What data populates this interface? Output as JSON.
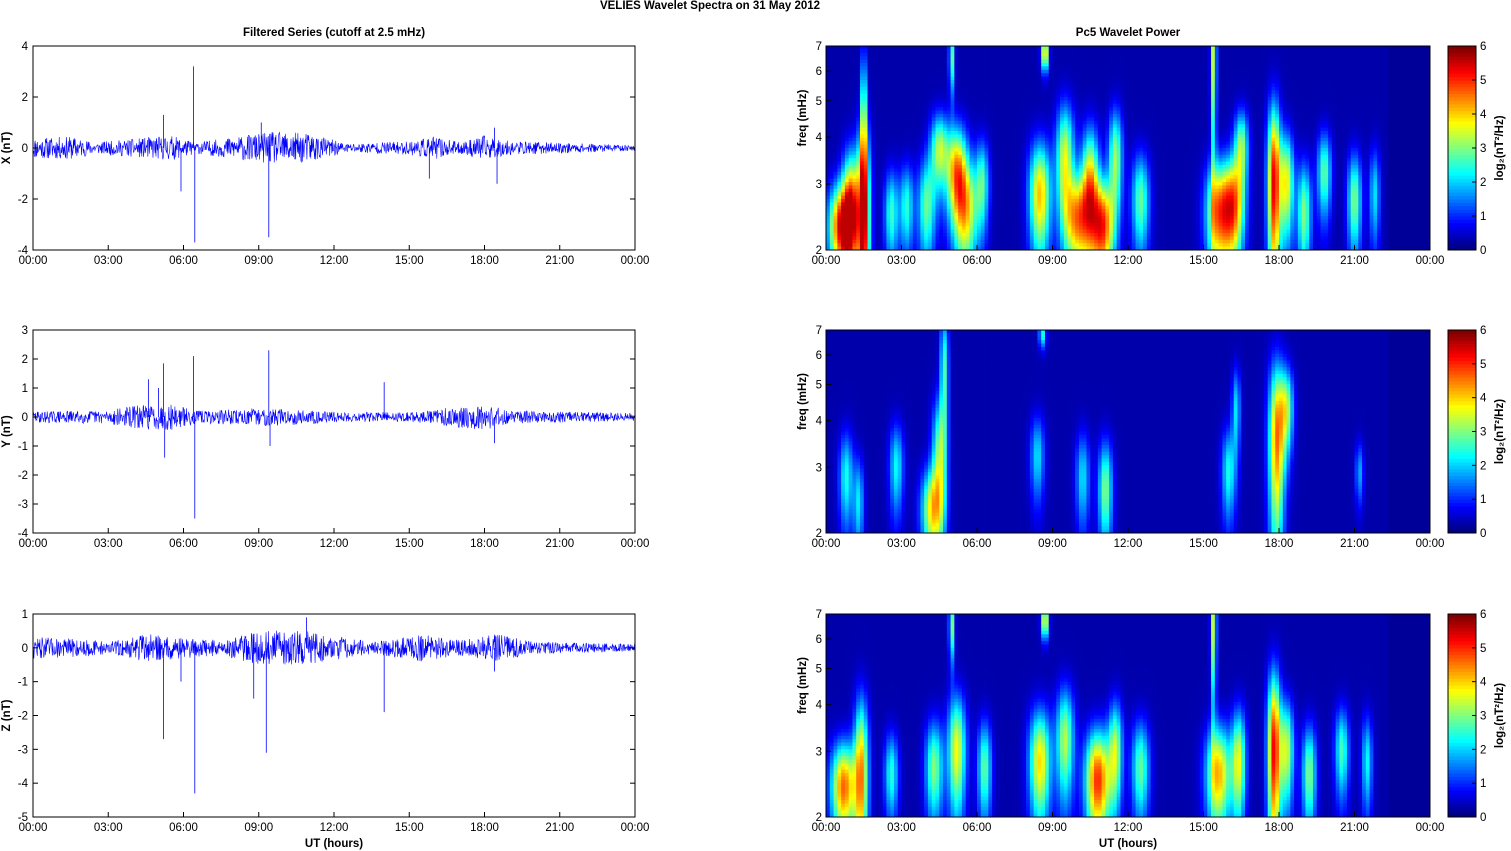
{
  "figure": {
    "title": "VELIES Wavelet Spectra on 31 May      2012"
  },
  "x_ticks": [
    "00:00",
    "03:00",
    "06:00",
    "09:00",
    "12:00",
    "15:00",
    "18:00",
    "21:00",
    "00:00"
  ],
  "chart_data": [
    {
      "type": "line",
      "title": "Filtered Series (cutoff at 2.5 mHz)",
      "ylabel": "X (nT)",
      "xlabel": "",
      "xlim": [
        0,
        24
      ],
      "ylim": [
        -4,
        4
      ],
      "yticks": [
        -4,
        -2,
        0,
        2,
        4
      ],
      "series_color": "#0000ff",
      "noise_profile": [
        [
          0,
          0.45
        ],
        [
          1.5,
          0.5
        ],
        [
          2.5,
          0.25
        ],
        [
          4.5,
          0.45
        ],
        [
          5.5,
          0.55
        ],
        [
          6.5,
          0.25
        ],
        [
          8.5,
          0.55
        ],
        [
          9.5,
          0.7
        ],
        [
          11,
          0.65
        ],
        [
          12.5,
          0.2
        ],
        [
          15,
          0.3
        ],
        [
          16,
          0.5
        ],
        [
          17,
          0.25
        ],
        [
          18,
          0.55
        ],
        [
          19,
          0.3
        ],
        [
          24,
          0.12
        ]
      ],
      "spikes": [
        [
          5.2,
          1.3
        ],
        [
          5.9,
          -1.7
        ],
        [
          6.4,
          3.2
        ],
        [
          6.45,
          -3.7
        ],
        [
          9.4,
          -3.5
        ],
        [
          9.1,
          1.0
        ],
        [
          15.8,
          -1.2
        ],
        [
          18.5,
          -1.4
        ],
        [
          18.4,
          0.8
        ]
      ],
      "seed": 11
    },
    {
      "type": "line",
      "title": "",
      "ylabel": "Y (nT)",
      "xlabel": "",
      "xlim": [
        0,
        24
      ],
      "ylim": [
        -4,
        3
      ],
      "yticks": [
        -4,
        -3,
        -2,
        -1,
        0,
        1,
        2,
        3
      ],
      "series_color": "#0000ff",
      "noise_profile": [
        [
          0,
          0.22
        ],
        [
          3,
          0.25
        ],
        [
          4,
          0.45
        ],
        [
          5.5,
          0.5
        ],
        [
          6.5,
          0.25
        ],
        [
          8,
          0.3
        ],
        [
          9.5,
          0.35
        ],
        [
          12,
          0.2
        ],
        [
          15,
          0.18
        ],
        [
          16,
          0.3
        ],
        [
          18,
          0.5
        ],
        [
          19,
          0.25
        ],
        [
          24,
          0.15
        ]
      ],
      "spikes": [
        [
          4.6,
          1.3
        ],
        [
          5.0,
          1.0
        ],
        [
          5.2,
          1.85
        ],
        [
          5.25,
          -1.4
        ],
        [
          6.4,
          2.1
        ],
        [
          6.45,
          -3.5
        ],
        [
          9.4,
          2.3
        ],
        [
          9.45,
          -1.0
        ],
        [
          14.0,
          1.2
        ],
        [
          18.4,
          -0.9
        ]
      ],
      "seed": 29
    },
    {
      "type": "line",
      "title": "",
      "ylabel": "Z (nT)",
      "xlabel": "UT (hours)",
      "xlim": [
        0,
        24
      ],
      "ylim": [
        -5,
        1
      ],
      "yticks": [
        -5,
        -4,
        -3,
        -2,
        -1,
        0,
        1
      ],
      "series_color": "#0000ff",
      "noise_profile": [
        [
          0,
          0.35
        ],
        [
          2,
          0.3
        ],
        [
          3,
          0.2
        ],
        [
          4.5,
          0.45
        ],
        [
          6,
          0.35
        ],
        [
          7.5,
          0.25
        ],
        [
          9,
          0.55
        ],
        [
          10.5,
          0.6
        ],
        [
          12,
          0.4
        ],
        [
          13.5,
          0.2
        ],
        [
          15.5,
          0.45
        ],
        [
          17,
          0.25
        ],
        [
          18.5,
          0.45
        ],
        [
          20,
          0.2
        ],
        [
          24,
          0.12
        ]
      ],
      "spikes": [
        [
          5.2,
          -2.7
        ],
        [
          5.9,
          -1.0
        ],
        [
          6.45,
          -4.3
        ],
        [
          8.8,
          -1.5
        ],
        [
          9.3,
          -3.1
        ],
        [
          10.9,
          0.9
        ],
        [
          14.0,
          -1.9
        ],
        [
          18.4,
          -0.7
        ]
      ],
      "seed": 47
    },
    {
      "type": "heatmap",
      "title": "Pc5 Wavelet Power",
      "ylabel": "freq (mHz)",
      "xlabel": "",
      "xlim": [
        0,
        24
      ],
      "ylim": [
        2,
        7
      ],
      "y_scale": "log",
      "yticks": [
        2,
        3,
        4,
        5,
        6,
        7
      ],
      "colorbar": {
        "label": "log₂(nT²/Hz)",
        "range": [
          0,
          6
        ],
        "ticks": [
          0,
          1,
          2,
          3,
          4,
          5,
          6
        ],
        "colormap": "jet"
      },
      "blobs": [
        {
          "t": 0.6,
          "f": 2.3,
          "w": 0.35,
          "h": 0.45,
          "v": 5.2
        },
        {
          "t": 1.0,
          "f": 2.6,
          "w": 0.25,
          "h": 0.7,
          "v": 4.5
        },
        {
          "t": 1.5,
          "f": 2.4,
          "w": 0.18,
          "h": 1.2,
          "v": 5.0
        },
        {
          "t": 1.5,
          "f": 4.5,
          "w": 0.08,
          "h": 1.5,
          "v": 3.2
        },
        {
          "t": 2.6,
          "f": 2.5,
          "w": 0.2,
          "h": 0.5,
          "v": 2.5
        },
        {
          "t": 3.2,
          "f": 2.6,
          "w": 0.2,
          "h": 0.5,
          "v": 2.4
        },
        {
          "t": 4.0,
          "f": 2.6,
          "w": 0.25,
          "h": 0.6,
          "v": 2.8
        },
        {
          "t": 4.5,
          "f": 3.7,
          "w": 0.25,
          "h": 0.6,
          "v": 3.2
        },
        {
          "t": 5.2,
          "f": 3.2,
          "w": 0.3,
          "h": 0.7,
          "v": 4.5
        },
        {
          "t": 5.6,
          "f": 2.5,
          "w": 0.3,
          "h": 0.6,
          "v": 3.3
        },
        {
          "t": 5.0,
          "f": 6.5,
          "w": 0.08,
          "h": 1.0,
          "v": 2.8
        },
        {
          "t": 6.2,
          "f": 3.0,
          "w": 0.2,
          "h": 0.6,
          "v": 2.6
        },
        {
          "t": 8.5,
          "f": 2.8,
          "w": 0.3,
          "h": 0.7,
          "v": 4.2
        },
        {
          "t": 8.7,
          "f": 6.7,
          "w": 0.1,
          "h": 0.5,
          "v": 4.5
        },
        {
          "t": 9.5,
          "f": 3.5,
          "w": 0.25,
          "h": 0.9,
          "v": 3.6
        },
        {
          "t": 10.0,
          "f": 2.4,
          "w": 0.35,
          "h": 0.5,
          "v": 4.3
        },
        {
          "t": 10.5,
          "f": 3.0,
          "w": 0.25,
          "h": 0.8,
          "v": 4.0
        },
        {
          "t": 11.0,
          "f": 2.3,
          "w": 0.3,
          "h": 0.5,
          "v": 5.0
        },
        {
          "t": 11.5,
          "f": 3.5,
          "w": 0.2,
          "h": 0.8,
          "v": 3.2
        },
        {
          "t": 12.5,
          "f": 2.7,
          "w": 0.25,
          "h": 0.6,
          "v": 2.8
        },
        {
          "t": 15.4,
          "f": 6.5,
          "w": 0.08,
          "h": 2.5,
          "v": 3.5
        },
        {
          "t": 15.6,
          "f": 2.5,
          "w": 0.35,
          "h": 0.6,
          "v": 4.5
        },
        {
          "t": 16.2,
          "f": 2.6,
          "w": 0.3,
          "h": 0.6,
          "v": 4.3
        },
        {
          "t": 16.5,
          "f": 3.8,
          "w": 0.2,
          "h": 0.6,
          "v": 3.0
        },
        {
          "t": 17.8,
          "f": 3.0,
          "w": 0.18,
          "h": 1.2,
          "v": 5.5
        },
        {
          "t": 18.3,
          "f": 3.0,
          "w": 0.2,
          "h": 0.7,
          "v": 3.8
        },
        {
          "t": 19.0,
          "f": 2.5,
          "w": 0.2,
          "h": 0.6,
          "v": 3.0
        },
        {
          "t": 19.8,
          "f": 3.2,
          "w": 0.2,
          "h": 0.6,
          "v": 2.8
        },
        {
          "t": 21.0,
          "f": 2.7,
          "w": 0.2,
          "h": 0.6,
          "v": 3.0
        },
        {
          "t": 21.8,
          "f": 2.8,
          "w": 0.15,
          "h": 0.6,
          "v": 2.0
        }
      ]
    },
    {
      "type": "heatmap",
      "title": "",
      "ylabel": "freq (mHz)",
      "xlabel": "",
      "xlim": [
        0,
        24
      ],
      "ylim": [
        2,
        7
      ],
      "y_scale": "log",
      "yticks": [
        2,
        3,
        4,
        5,
        6,
        7
      ],
      "colorbar": {
        "label": "log₂(nT²/Hz)",
        "range": [
          0,
          6
        ],
        "ticks": [
          0,
          1,
          2,
          3,
          4,
          5,
          6
        ],
        "colormap": "jet"
      },
      "blobs": [
        {
          "t": 0.8,
          "f": 2.8,
          "w": 0.2,
          "h": 0.6,
          "v": 2.3
        },
        {
          "t": 1.3,
          "f": 2.4,
          "w": 0.15,
          "h": 0.5,
          "v": 2.0
        },
        {
          "t": 2.8,
          "f": 3.0,
          "w": 0.2,
          "h": 0.6,
          "v": 2.2
        },
        {
          "t": 4.2,
          "f": 2.3,
          "w": 0.3,
          "h": 0.45,
          "v": 3.6
        },
        {
          "t": 4.5,
          "f": 3.2,
          "w": 0.2,
          "h": 0.9,
          "v": 3.0
        },
        {
          "t": 4.7,
          "f": 5.5,
          "w": 0.12,
          "h": 1.5,
          "v": 2.6
        },
        {
          "t": 8.4,
          "f": 3.2,
          "w": 0.2,
          "h": 0.6,
          "v": 2.0
        },
        {
          "t": 8.6,
          "f": 6.8,
          "w": 0.1,
          "h": 0.4,
          "v": 2.4
        },
        {
          "t": 10.2,
          "f": 2.8,
          "w": 0.2,
          "h": 0.6,
          "v": 2.0
        },
        {
          "t": 11.1,
          "f": 2.6,
          "w": 0.2,
          "h": 0.6,
          "v": 3.0
        },
        {
          "t": 16.0,
          "f": 2.9,
          "w": 0.2,
          "h": 0.6,
          "v": 2.3
        },
        {
          "t": 16.3,
          "f": 4.3,
          "w": 0.12,
          "h": 0.8,
          "v": 2.0
        },
        {
          "t": 17.9,
          "f": 3.5,
          "w": 0.22,
          "h": 1.4,
          "v": 4.5
        },
        {
          "t": 18.3,
          "f": 4.3,
          "w": 0.2,
          "h": 0.8,
          "v": 3.0
        },
        {
          "t": 21.2,
          "f": 2.9,
          "w": 0.12,
          "h": 0.4,
          "v": 1.6
        }
      ]
    },
    {
      "type": "heatmap",
      "title": "",
      "ylabel": "freq (mHz)",
      "xlabel": "UT (hours)",
      "xlim": [
        0,
        24
      ],
      "ylim": [
        2,
        7
      ],
      "y_scale": "log",
      "yticks": [
        2,
        3,
        4,
        5,
        6,
        7
      ],
      "colorbar": {
        "label": "log₂(nT²/Hz)",
        "range": [
          0,
          6
        ],
        "ticks": [
          0,
          1,
          2,
          3,
          4,
          5,
          6
        ],
        "colormap": "jet"
      },
      "blobs": [
        {
          "t": 0.7,
          "f": 2.4,
          "w": 0.35,
          "h": 0.5,
          "v": 4.8
        },
        {
          "t": 1.4,
          "f": 2.6,
          "w": 0.2,
          "h": 1.0,
          "v": 4.2
        },
        {
          "t": 2.6,
          "f": 2.6,
          "w": 0.2,
          "h": 0.5,
          "v": 2.4
        },
        {
          "t": 4.3,
          "f": 2.7,
          "w": 0.25,
          "h": 0.6,
          "v": 3.0
        },
        {
          "t": 5.2,
          "f": 3.0,
          "w": 0.25,
          "h": 0.8,
          "v": 3.8
        },
        {
          "t": 5.0,
          "f": 6.5,
          "w": 0.08,
          "h": 1.0,
          "v": 3.0
        },
        {
          "t": 6.3,
          "f": 2.7,
          "w": 0.2,
          "h": 0.6,
          "v": 2.8
        },
        {
          "t": 8.5,
          "f": 2.8,
          "w": 0.3,
          "h": 0.7,
          "v": 4.0
        },
        {
          "t": 8.7,
          "f": 6.7,
          "w": 0.1,
          "h": 0.5,
          "v": 4.2
        },
        {
          "t": 9.5,
          "f": 3.2,
          "w": 0.25,
          "h": 0.8,
          "v": 3.3
        },
        {
          "t": 10.8,
          "f": 2.5,
          "w": 0.35,
          "h": 0.6,
          "v": 5.2
        },
        {
          "t": 11.5,
          "f": 3.0,
          "w": 0.2,
          "h": 0.7,
          "v": 3.2
        },
        {
          "t": 12.5,
          "f": 2.7,
          "w": 0.25,
          "h": 0.6,
          "v": 2.8
        },
        {
          "t": 15.6,
          "f": 2.6,
          "w": 0.35,
          "h": 0.6,
          "v": 4.3
        },
        {
          "t": 15.4,
          "f": 6.5,
          "w": 0.08,
          "h": 2.0,
          "v": 3.5
        },
        {
          "t": 16.4,
          "f": 2.8,
          "w": 0.2,
          "h": 0.7,
          "v": 3.5
        },
        {
          "t": 17.8,
          "f": 3.0,
          "w": 0.18,
          "h": 1.2,
          "v": 5.4
        },
        {
          "t": 18.3,
          "f": 3.0,
          "w": 0.2,
          "h": 0.7,
          "v": 3.5
        },
        {
          "t": 19.2,
          "f": 2.6,
          "w": 0.2,
          "h": 0.6,
          "v": 3.0
        },
        {
          "t": 20.5,
          "f": 3.0,
          "w": 0.2,
          "h": 0.6,
          "v": 2.6
        },
        {
          "t": 21.5,
          "f": 2.8,
          "w": 0.15,
          "h": 0.6,
          "v": 2.2
        }
      ]
    }
  ]
}
